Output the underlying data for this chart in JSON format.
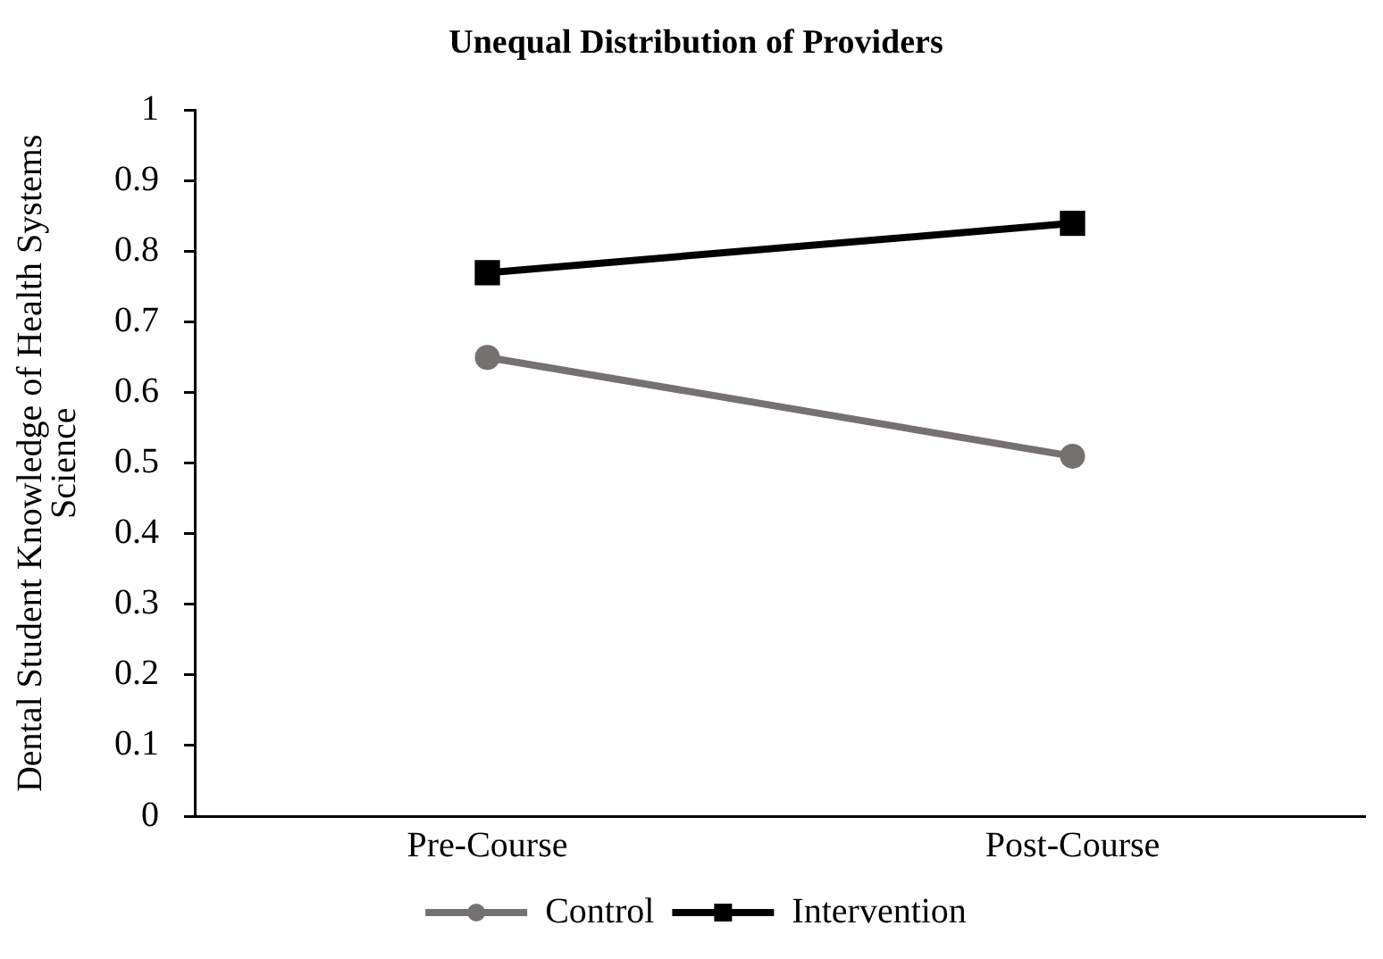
{
  "chart_data": {
    "type": "line",
    "title": "Unequal Distribution of Providers",
    "ylabel": "Dental Student Knowledge of Health Systems Science",
    "categories": [
      "Pre-Course",
      "Post-Course"
    ],
    "series": [
      {
        "name": "Control",
        "color": "#767171",
        "marker": "circle",
        "values": [
          0.65,
          0.51
        ]
      },
      {
        "name": "Intervention",
        "color": "#000000",
        "marker": "square",
        "values": [
          0.77,
          0.84
        ]
      }
    ],
    "ylim": [
      0,
      1
    ],
    "yticks": [
      0,
      0.1,
      0.2,
      0.3,
      0.4,
      0.5,
      0.6,
      0.7,
      0.8,
      0.9,
      1
    ],
    "grid": false,
    "legend": "bottom",
    "line_style": "solid"
  }
}
